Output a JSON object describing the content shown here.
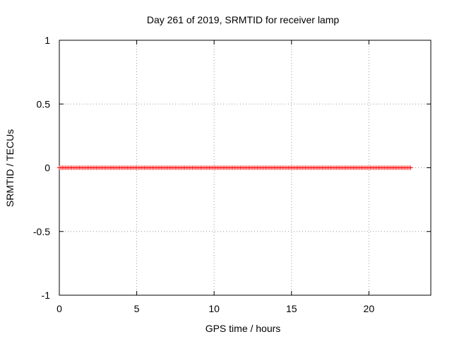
{
  "chart_data": {
    "type": "scatter",
    "title": "Day 261 of 2019, SRMTID for receiver lamp",
    "xlabel": "GPS time / hours",
    "ylabel": "SRMTID / TECUs",
    "xlim": [
      0,
      24
    ],
    "ylim": [
      -1,
      1
    ],
    "x_ticks": [
      0,
      5,
      10,
      15,
      20
    ],
    "x_tick_labels": [
      "0",
      "5",
      "10",
      "15",
      "20"
    ],
    "y_ticks": [
      -1,
      -0.5,
      0,
      0.5,
      1
    ],
    "y_tick_labels": [
      "-1",
      "-0.5",
      "0",
      "0.5",
      "1"
    ],
    "grid": true,
    "marker": "+",
    "series": [
      {
        "name": "SRMTID",
        "color": "#ff0000",
        "x": [
          0.0,
          0.1,
          0.2,
          0.3,
          0.4,
          0.5,
          0.6,
          0.7,
          0.8,
          0.9,
          1.0,
          1.1,
          1.2,
          1.3,
          1.4,
          1.5,
          1.6,
          1.7,
          1.8,
          1.9,
          2.0,
          2.1,
          2.2,
          2.3,
          2.4,
          2.5,
          2.6,
          2.7,
          2.8,
          2.9,
          3.0,
          3.1,
          3.2,
          3.3,
          3.4,
          3.5,
          3.6,
          3.7,
          3.8,
          3.9,
          4.0,
          4.1,
          4.2,
          4.3,
          4.4,
          4.5,
          4.6,
          4.7,
          4.8,
          4.9,
          5.0,
          5.1,
          5.2,
          5.3,
          5.4,
          5.5,
          5.6,
          5.7,
          5.8,
          5.9,
          6.0,
          6.1,
          6.2,
          6.3,
          6.4,
          6.5,
          6.6,
          6.7,
          6.8,
          6.9,
          7.0,
          7.1,
          7.2,
          7.3,
          7.4,
          7.5,
          7.6,
          7.7,
          7.8,
          7.9,
          8.0,
          8.1,
          8.2,
          8.3,
          8.4,
          8.5,
          8.6,
          8.7,
          8.8,
          8.9,
          9.0,
          9.1,
          9.2,
          9.3,
          9.4,
          9.5,
          9.6,
          9.7,
          9.8,
          9.9,
          10.0,
          10.1,
          10.2,
          10.3,
          10.4,
          10.5,
          10.6,
          10.7,
          10.8,
          10.9,
          11.0,
          11.1,
          11.2,
          11.3,
          11.4,
          11.5,
          11.6,
          11.7,
          11.8,
          11.9,
          12.0,
          12.1,
          12.2,
          12.3,
          12.4,
          12.5,
          12.6,
          12.7,
          12.8,
          12.9,
          13.0,
          13.1,
          13.2,
          13.3,
          13.4,
          13.5,
          13.6,
          13.7,
          13.8,
          13.9,
          14.0,
          14.1,
          14.2,
          14.3,
          14.4,
          14.5,
          14.6,
          14.7,
          14.8,
          14.9,
          15.0,
          15.1,
          15.2,
          15.3,
          15.4,
          15.5,
          15.6,
          15.7,
          15.8,
          15.9,
          16.0,
          16.1,
          16.2,
          16.3,
          16.4,
          16.5,
          16.6,
          16.7,
          16.8,
          16.9,
          17.0,
          17.1,
          17.2,
          17.3,
          17.4,
          17.5,
          17.6,
          17.7,
          17.8,
          17.9,
          18.0,
          18.1,
          18.2,
          18.3,
          18.4,
          18.5,
          18.6,
          18.7,
          18.8,
          18.9,
          19.0,
          19.1,
          19.2,
          19.3,
          19.4,
          19.5,
          19.6,
          19.7,
          19.8,
          19.9,
          20.0,
          20.1,
          20.2,
          20.3,
          20.4,
          20.5,
          20.6,
          20.7,
          20.8,
          20.9,
          21.0,
          21.1,
          21.2,
          21.3,
          21.4,
          21.5,
          21.6,
          21.7,
          21.8,
          21.9,
          22.0,
          22.1,
          22.2,
          22.3,
          22.4,
          22.5,
          22.6,
          22.7
        ],
        "y": [
          0,
          0,
          0,
          0,
          0,
          0,
          0,
          0,
          0,
          0,
          0,
          0,
          0,
          0,
          0,
          0,
          0,
          0,
          0,
          0,
          0,
          0,
          0,
          0,
          0,
          0,
          0,
          0,
          0,
          0,
          0,
          0,
          0,
          0,
          0,
          0,
          0,
          0,
          0,
          0,
          0,
          0,
          0,
          0,
          0,
          0,
          0,
          0,
          0,
          0,
          0,
          0,
          0,
          0,
          0,
          0,
          0,
          0,
          0,
          0,
          0,
          0,
          0,
          0,
          0,
          0,
          0,
          0,
          0,
          0,
          0,
          0,
          0,
          0,
          0,
          0,
          0,
          0,
          0,
          0,
          0,
          0,
          0,
          0,
          0,
          0,
          0,
          0,
          0,
          0,
          0,
          0,
          0,
          0,
          0,
          0,
          0,
          0,
          0,
          0,
          0,
          0,
          0,
          0,
          0,
          0,
          0,
          0,
          0,
          0,
          0,
          0,
          0,
          0,
          0,
          0,
          0,
          0,
          0,
          0,
          0,
          0,
          0,
          0,
          0,
          0,
          0,
          0,
          0,
          0,
          0,
          0,
          0,
          0,
          0,
          0,
          0,
          0,
          0,
          0,
          0,
          0,
          0,
          0,
          0,
          0,
          0,
          0,
          0,
          0,
          0,
          0,
          0,
          0,
          0,
          0,
          0,
          0,
          0,
          0,
          0,
          0,
          0,
          0,
          0,
          0,
          0,
          0,
          0,
          0,
          0,
          0,
          0,
          0,
          0,
          0,
          0,
          0,
          0,
          0,
          0,
          0,
          0,
          0,
          0,
          0,
          0,
          0,
          0,
          0,
          0,
          0,
          0,
          0,
          0,
          0,
          0,
          0,
          0,
          0,
          0,
          0,
          0,
          0,
          0,
          0,
          0,
          0,
          0,
          0,
          0,
          0,
          0,
          0,
          0,
          0,
          0,
          0,
          0,
          0,
          0,
          0,
          0,
          0,
          0,
          0,
          0,
          0
        ]
      }
    ]
  }
}
